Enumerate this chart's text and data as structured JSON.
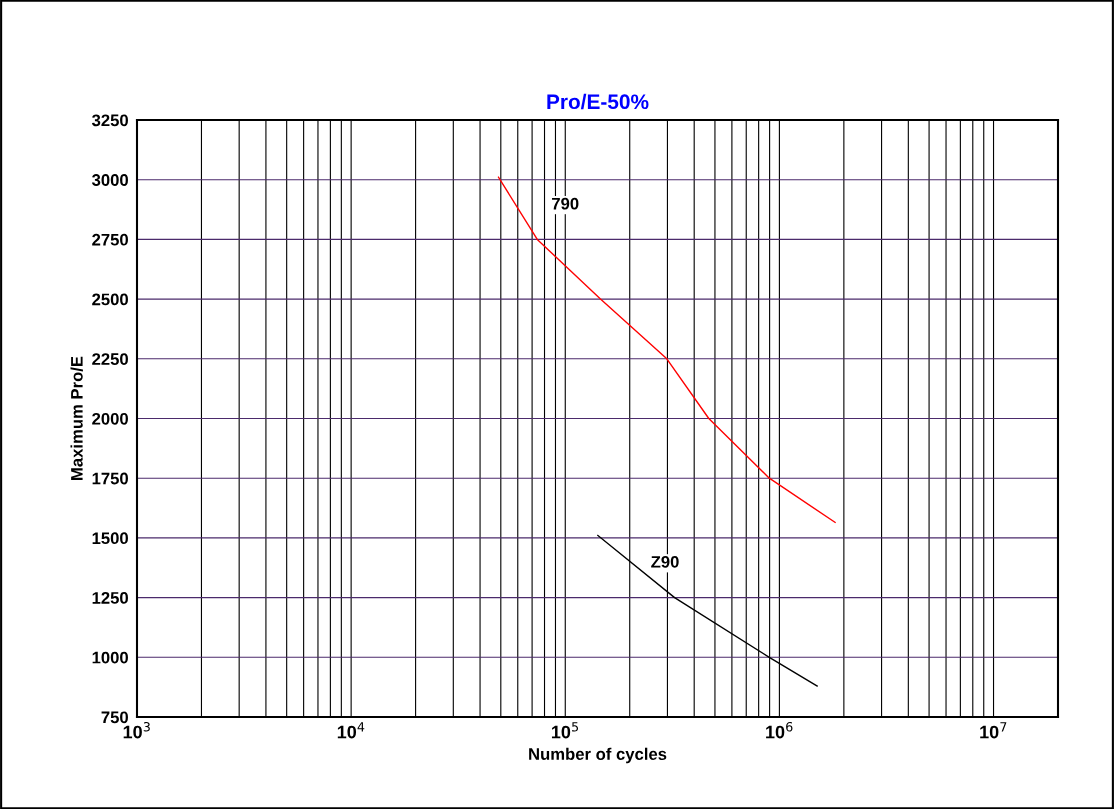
{
  "chart_data": {
    "type": "line",
    "title": "Pro/E-50%",
    "xlabel": "Number of cycles",
    "ylabel": "Maximum Pro/E",
    "series": [
      {
        "name": "790",
        "color": "#ff0000",
        "x": [
          48800,
          74000,
          146000,
          298000,
          468000,
          897000,
          1820000
        ],
        "values": [
          3010,
          2750,
          2500,
          2250,
          2000,
          1750,
          1565
        ]
      },
      {
        "name": "Z90",
        "color": "#000000",
        "x": [
          142000,
          324000,
          897000,
          1500000
        ],
        "values": [
          1510,
          1250,
          1000,
          880
        ]
      }
    ],
    "log": "x",
    "xlim": [
      1000,
      20000000
    ],
    "ylim": [
      750,
      3250
    ],
    "xticks": [
      {
        "value": 1000,
        "label": "10$^{3}$"
      },
      {
        "value": 2000,
        "label": null
      },
      {
        "value": 3000,
        "label": null
      },
      {
        "value": 4000,
        "label": null
      },
      {
        "value": 5000,
        "label": null
      },
      {
        "value": 6000,
        "label": null
      },
      {
        "value": 7000,
        "label": null
      },
      {
        "value": 8000,
        "label": null
      },
      {
        "value": 9000,
        "label": null
      },
      {
        "value": 10000,
        "label": "10$^{4}$"
      },
      {
        "value": 20000,
        "label": null
      },
      {
        "value": 30000,
        "label": null
      },
      {
        "value": 40000,
        "label": null
      },
      {
        "value": 50000,
        "label": null
      },
      {
        "value": 60000,
        "label": null
      },
      {
        "value": 70000,
        "label": null
      },
      {
        "value": 80000,
        "label": null
      },
      {
        "value": 90000,
        "label": null
      },
      {
        "value": 100000,
        "label": "10$^{5}$"
      },
      {
        "value": 200000,
        "label": null
      },
      {
        "value": 300000,
        "label": null
      },
      {
        "value": 400000,
        "label": null
      },
      {
        "value": 500000,
        "label": null
      },
      {
        "value": 600000,
        "label": null
      },
      {
        "value": 700000,
        "label": null
      },
      {
        "value": 800000,
        "label": null
      },
      {
        "value": 900000,
        "label": null
      },
      {
        "value": 1000000,
        "label": "10$^{6}$"
      },
      {
        "value": 2000000,
        "label": null
      },
      {
        "value": 3000000,
        "label": null
      },
      {
        "value": 4000000,
        "label": null
      },
      {
        "value": 5000000,
        "label": null
      },
      {
        "value": 6000000,
        "label": null
      },
      {
        "value": 7000000,
        "label": null
      },
      {
        "value": 8000000,
        "label": null
      },
      {
        "value": 9000000,
        "label": null
      },
      {
        "value": 10000000,
        "label": "10$^{7}$"
      }
    ],
    "yticks": [
      750,
      1000,
      1250,
      1500,
      1750,
      2000,
      2250,
      2500,
      2750,
      3000,
      3250
    ],
    "grid": true,
    "marker": "none",
    "line_style": "solid",
    "legend": false
  }
}
